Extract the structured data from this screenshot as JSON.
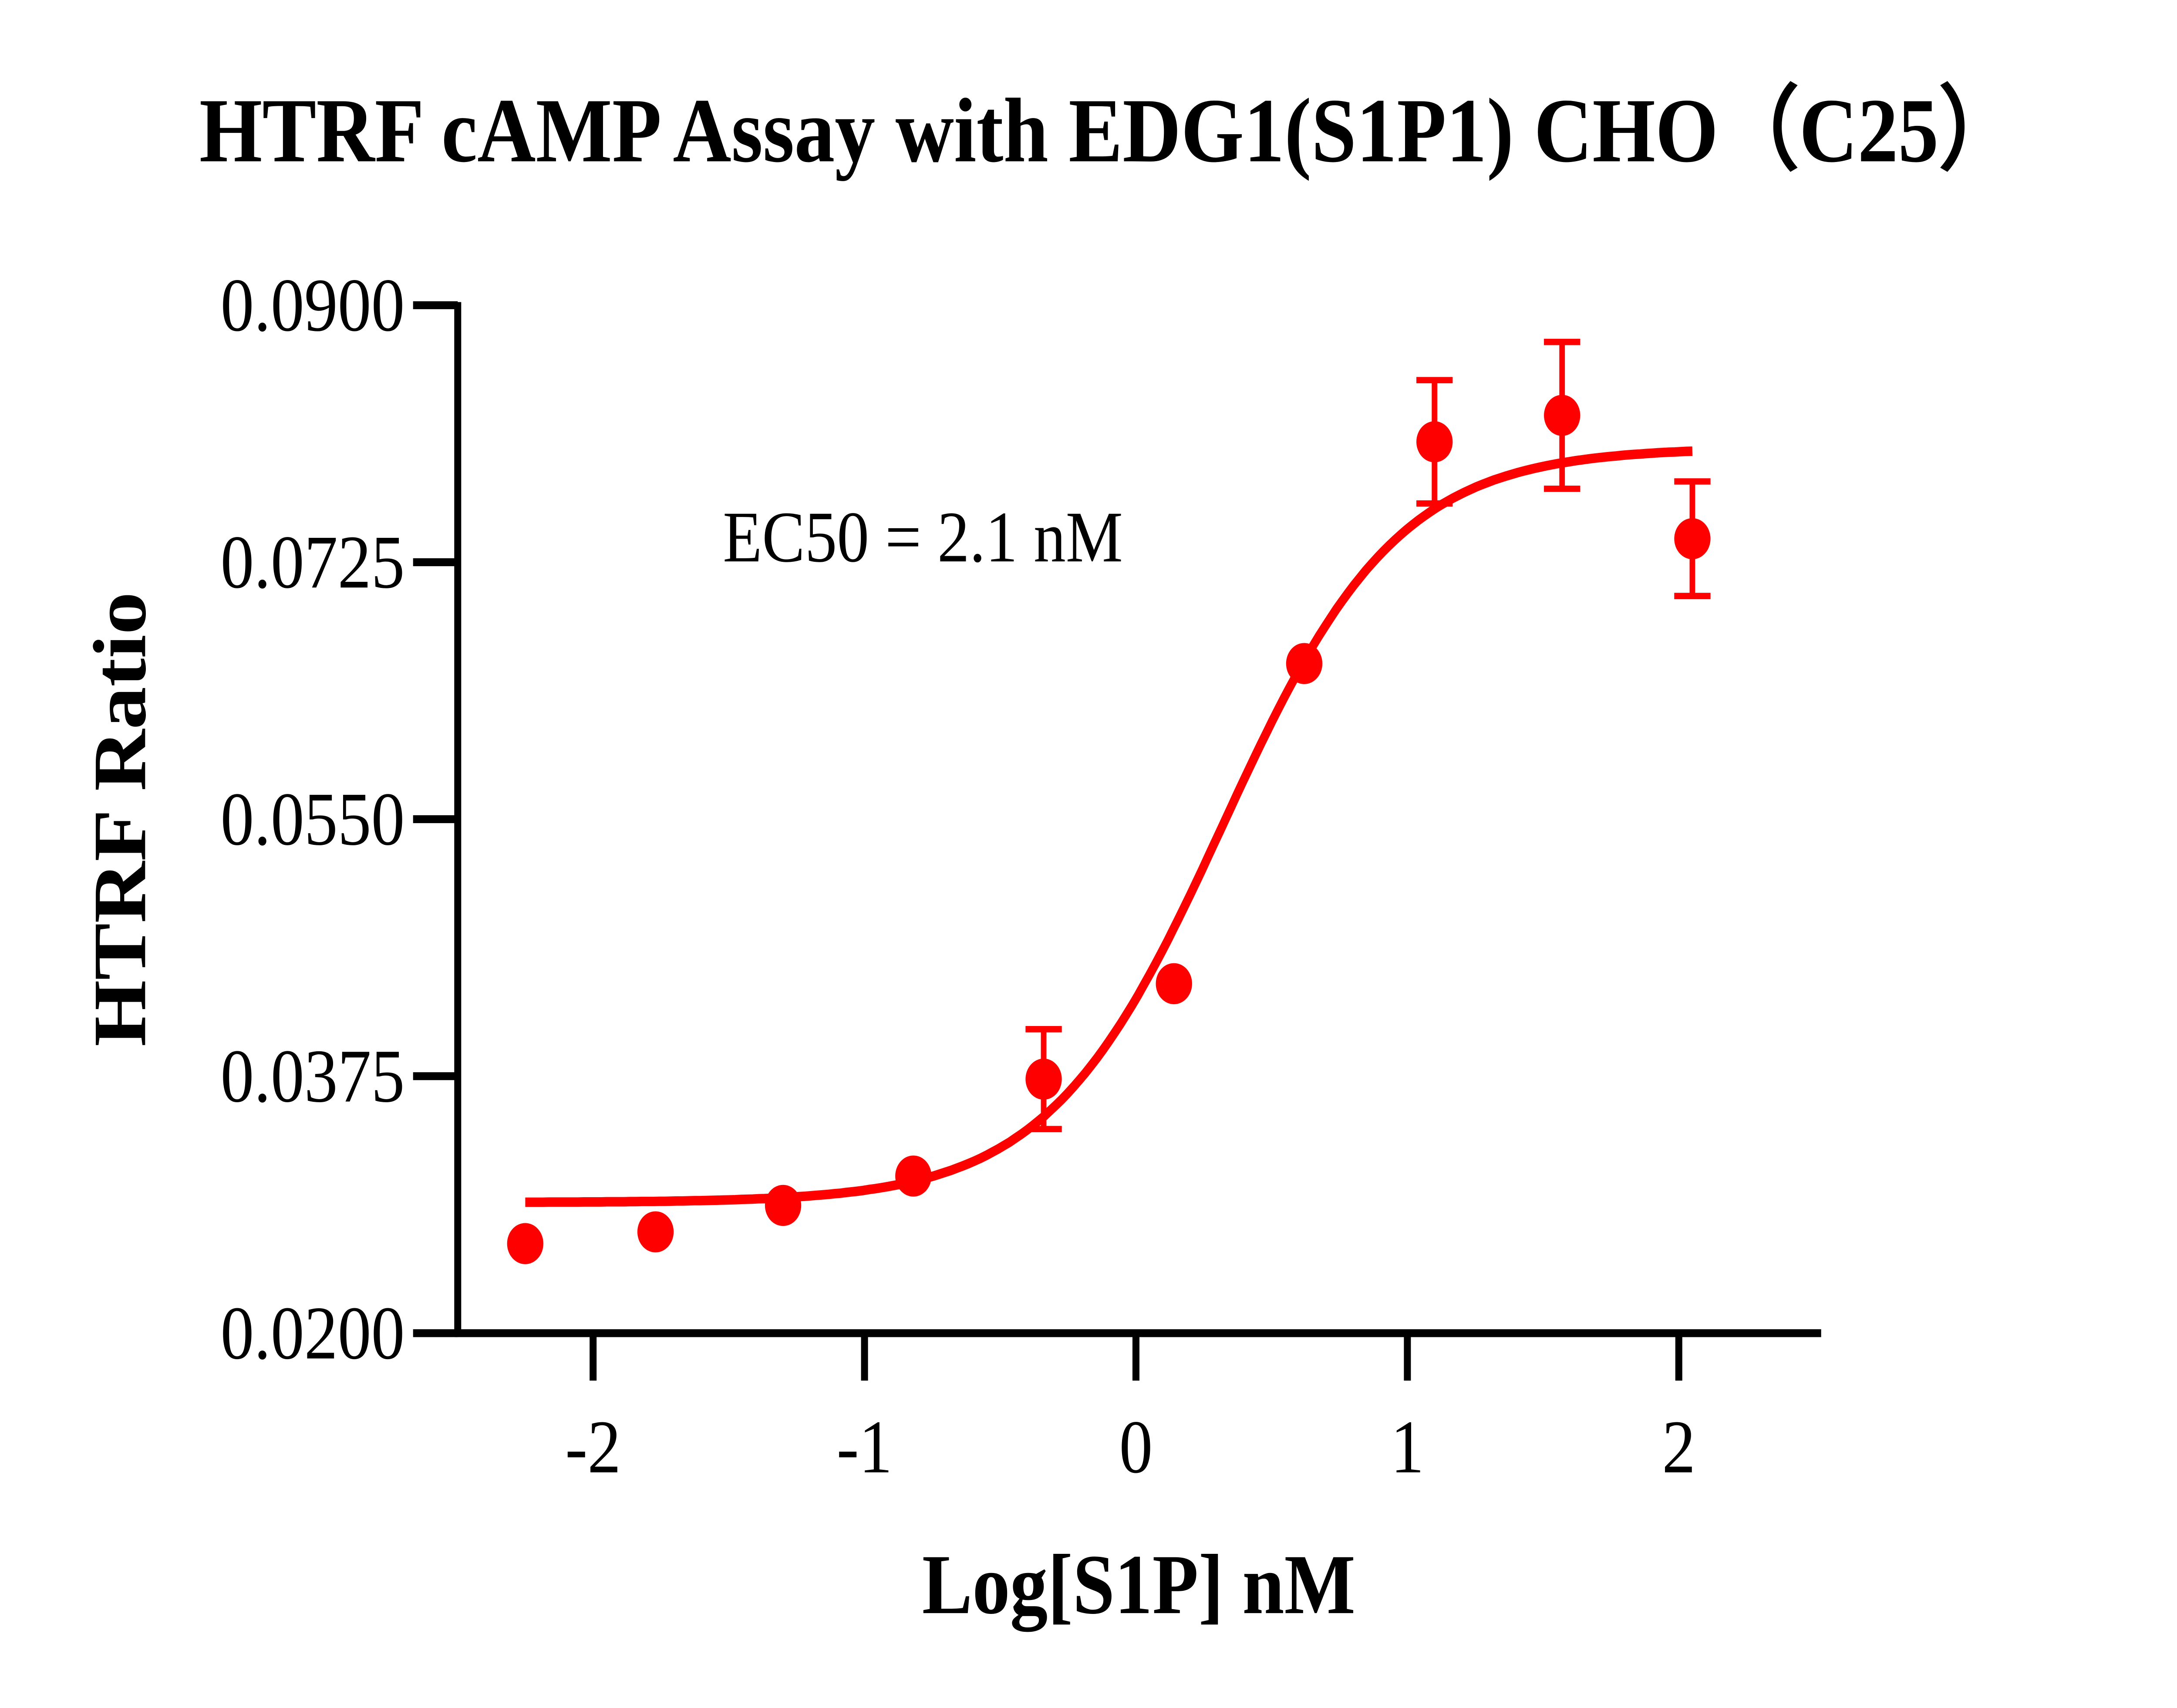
{
  "chart_data": {
    "type": "scatter",
    "title": "HTRF cAMP Assay with EDG1(S1P1) CHO（C25）",
    "xlabel": "Log[S1P] nM",
    "ylabel": "HTRF Ratio",
    "annotation": "EC50 = 2.1 nM",
    "xlim": [
      -2.55,
      2.5
    ],
    "ylim": [
      0.02,
      0.09
    ],
    "xticks": [
      -2,
      -1,
      0,
      1,
      2
    ],
    "xtick_labels": [
      "-2",
      "-1",
      "0",
      "1",
      "2"
    ],
    "yticks": [
      0.02,
      0.0375,
      0.055,
      0.0725,
      0.09
    ],
    "ytick_labels": [
      "0.0200",
      "0.0375",
      "0.0550",
      "0.0725",
      "0.0900"
    ],
    "grid": false,
    "color": "#ff0000",
    "points": [
      {
        "x": -2.25,
        "y": 0.0261,
        "err": 0
      },
      {
        "x": -1.77,
        "y": 0.0269,
        "err": 0
      },
      {
        "x": -1.3,
        "y": 0.0287,
        "err": 0
      },
      {
        "x": -0.82,
        "y": 0.0307,
        "err": 0
      },
      {
        "x": -0.34,
        "y": 0.0373,
        "err": 0.0034
      },
      {
        "x": 0.14,
        "y": 0.0438,
        "err": 0
      },
      {
        "x": 0.62,
        "y": 0.0656,
        "err": 0
      },
      {
        "x": 1.1,
        "y": 0.0807,
        "err": 0.0042
      },
      {
        "x": 1.57,
        "y": 0.0825,
        "err": 0.005
      },
      {
        "x": 2.05,
        "y": 0.0741,
        "err": 0.0039
      }
    ],
    "fit": {
      "model": "four-parameter logistic",
      "bottom": 0.0289,
      "top": 0.0803,
      "logEC50": 0.32,
      "hill": 1.35,
      "x_range": [
        -2.25,
        2.05
      ]
    }
  }
}
